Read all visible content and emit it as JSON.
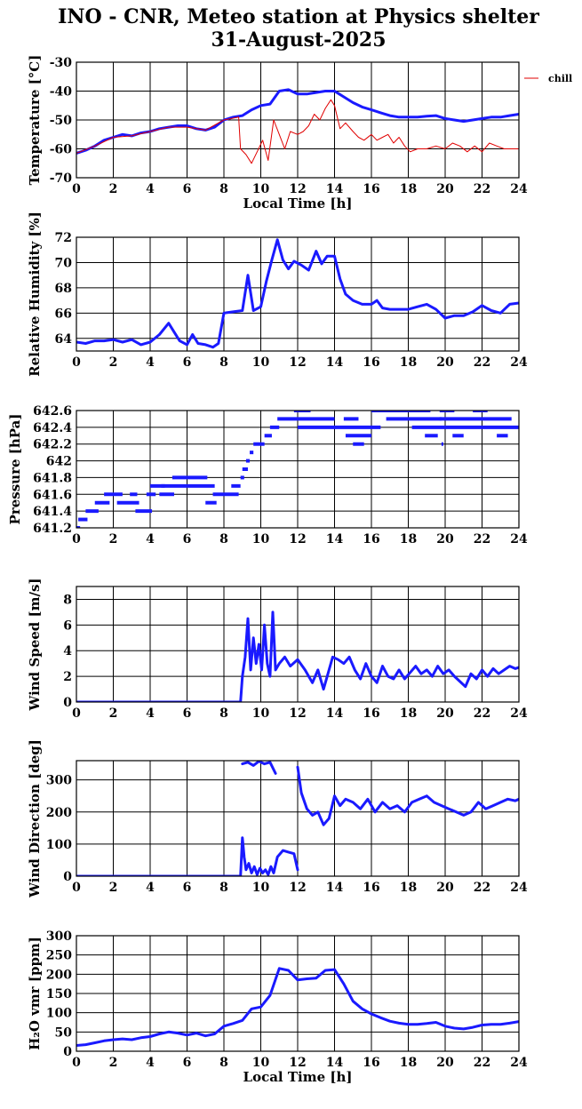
{
  "title": {
    "line1": "INO - CNR, Meteo station at Physics shelter",
    "line2": "31-August-2025"
  },
  "colors": {
    "blue": "#1a1aff",
    "red": "#e00000",
    "grid": "#000000"
  },
  "chart_data": [
    {
      "type": "line",
      "id": "temperature",
      "ylabel": "Temperature [°C]",
      "xlabel": "Local Time [h]",
      "xlim": [
        0,
        24
      ],
      "ylim": [
        -70,
        -30
      ],
      "xticks": [
        0,
        2,
        4,
        6,
        8,
        10,
        12,
        14,
        16,
        18,
        20,
        22,
        24
      ],
      "yticks": [
        -70,
        -60,
        -50,
        -40,
        -30
      ],
      "grid": true,
      "legend": {
        "position": "outside-right",
        "entries": [
          "chill"
        ]
      },
      "series": [
        {
          "color": "#1a1aff",
          "width": 3,
          "x": [
            0,
            0.5,
            1,
            1.5,
            2,
            2.5,
            3,
            3.5,
            4,
            4.5,
            5,
            5.5,
            6,
            6.5,
            7,
            7.5,
            8,
            8.5,
            9,
            9.5,
            10,
            10.5,
            11,
            11.5,
            12,
            12.5,
            13,
            13.5,
            14,
            14.5,
            15,
            15.5,
            16,
            16.5,
            17,
            17.5,
            18,
            18.5,
            19,
            19.5,
            20,
            20.5,
            21,
            21.5,
            22,
            22.5,
            23,
            23.5,
            24
          ],
          "y": [
            -61.5,
            -60.5,
            -59,
            -57,
            -56,
            -55,
            -55.5,
            -54.5,
            -54,
            -53,
            -52.5,
            -52,
            -52,
            -53,
            -53.5,
            -52.5,
            -50,
            -49,
            -48.5,
            -46.5,
            -45,
            -44.5,
            -40,
            -39.5,
            -41,
            -41,
            -40.5,
            -40,
            -40,
            -42,
            -44,
            -45.5,
            -46.5,
            -47.5,
            -48.5,
            -49,
            -49,
            -49,
            -48.7,
            -48.5,
            -49.5,
            -50,
            -50.5,
            -50,
            -49.5,
            -49,
            -49,
            -48.5,
            -48
          ]
        },
        {
          "name": "chill",
          "color": "#e00000",
          "width": 1,
          "x": [
            0,
            1,
            2,
            3,
            4,
            5,
            6,
            7,
            8,
            8.8,
            8.9,
            9.2,
            9.5,
            9.8,
            10.1,
            10.4,
            10.7,
            11,
            11.3,
            11.6,
            12,
            12.3,
            12.6,
            12.9,
            13.2,
            13.5,
            13.8,
            14,
            14.3,
            14.6,
            15,
            15.3,
            15.6,
            16,
            16.3,
            16.6,
            16.9,
            17.2,
            17.5,
            17.8,
            18.1,
            18.5,
            19,
            19.5,
            20,
            20.4,
            20.8,
            21.2,
            21.6,
            22,
            22.4,
            22.8,
            23.2,
            23.6,
            24
          ],
          "y": [
            -61.5,
            -59,
            -56,
            -55.5,
            -54,
            -52.5,
            -52.5,
            -53.5,
            -50,
            -49,
            -60,
            -62,
            -65,
            -61,
            -57,
            -64,
            -50,
            -55,
            -60,
            -54,
            -55,
            -54,
            -52,
            -48,
            -50,
            -46,
            -43,
            -45,
            -53,
            -51,
            -54,
            -56,
            -57,
            -55,
            -57,
            -56,
            -55,
            -58,
            -56,
            -59,
            -61,
            -60,
            -60,
            -59,
            -60,
            -58,
            -59,
            -61,
            -59,
            -61,
            -58,
            -59,
            -60,
            -60,
            -60
          ]
        }
      ]
    },
    {
      "type": "line",
      "id": "humidity",
      "ylabel": "Relative Humidity [%]",
      "xlim": [
        0,
        24
      ],
      "ylim": [
        63,
        72
      ],
      "xticks": [
        0,
        2,
        4,
        6,
        8,
        10,
        12,
        14,
        16,
        18,
        20,
        22,
        24
      ],
      "yticks": [
        64,
        66,
        68,
        70,
        72
      ],
      "grid": true,
      "series": [
        {
          "color": "#1a1aff",
          "width": 3,
          "x": [
            0,
            0.5,
            1,
            1.5,
            2,
            2.5,
            3,
            3.5,
            4,
            4.5,
            5,
            5.3,
            5.6,
            6,
            6.3,
            6.6,
            7,
            7.4,
            7.7,
            8,
            8.5,
            9,
            9.3,
            9.6,
            10,
            10.3,
            10.6,
            10.9,
            11.2,
            11.5,
            11.8,
            12.2,
            12.6,
            13,
            13.3,
            13.6,
            14,
            14.3,
            14.6,
            15,
            15.5,
            16,
            16.3,
            16.6,
            17,
            17.5,
            18,
            18.5,
            19,
            19.5,
            20,
            20.5,
            21,
            21.5,
            22,
            22.5,
            23,
            23.5,
            24
          ],
          "y": [
            63.7,
            63.6,
            63.8,
            63.8,
            63.9,
            63.7,
            63.9,
            63.5,
            63.7,
            64.3,
            65.2,
            64.5,
            63.8,
            63.5,
            64.3,
            63.6,
            63.5,
            63.3,
            63.6,
            66,
            66.1,
            66.2,
            69,
            66.2,
            66.5,
            68.5,
            70.2,
            71.8,
            70.2,
            69.5,
            70.1,
            69.8,
            69.4,
            70.9,
            69.9,
            70.5,
            70.5,
            68.7,
            67.5,
            67,
            66.7,
            66.7,
            67,
            66.4,
            66.3,
            66.3,
            66.3,
            66.5,
            66.7,
            66.3,
            65.6,
            65.8,
            65.8,
            66.1,
            66.6,
            66.2,
            66,
            66.7,
            66.8
          ]
        }
      ]
    },
    {
      "type": "scatter",
      "id": "pressure",
      "ylabel": "Pressure [hPa]",
      "xlim": [
        0,
        24
      ],
      "ylim": [
        641.2,
        642.6
      ],
      "xticks": [
        0,
        2,
        4,
        6,
        8,
        10,
        12,
        14,
        16,
        18,
        20,
        22,
        24
      ],
      "yticks": [
        641.2,
        641.4,
        641.6,
        641.8,
        642,
        642.2,
        642.4,
        642.6
      ],
      "yticklabels": [
        "641.2",
        "641.4",
        "641.6",
        "641.8",
        "642",
        "642.2",
        "642.4",
        "642.6"
      ],
      "grid": true,
      "series": [
        {
          "color": "#1a1aff",
          "segments": [
            [
              0.0,
              0.2,
              641.2
            ],
            [
              0.1,
              0.6,
              641.3
            ],
            [
              0.5,
              1.2,
              641.4
            ],
            [
              1.0,
              1.8,
              641.5
            ],
            [
              1.5,
              2.5,
              641.6
            ],
            [
              2.2,
              3.4,
              641.5
            ],
            [
              2.9,
              3.3,
              641.6
            ],
            [
              3.2,
              4.1,
              641.4
            ],
            [
              3.8,
              4.3,
              641.6
            ],
            [
              4.0,
              4.8,
              641.7
            ],
            [
              4.5,
              5.3,
              641.6
            ],
            [
              4.6,
              7.5,
              641.7
            ],
            [
              5.2,
              7.1,
              641.8
            ],
            [
              7.0,
              7.6,
              641.5
            ],
            [
              7.4,
              8.8,
              641.6
            ],
            [
              8.4,
              8.9,
              641.7
            ],
            [
              8.9,
              9.1,
              641.8
            ],
            [
              9.0,
              9.3,
              641.9
            ],
            [
              9.2,
              9.4,
              642.0
            ],
            [
              9.4,
              9.6,
              642.1
            ],
            [
              9.6,
              10.2,
              642.2
            ],
            [
              10.2,
              10.6,
              642.3
            ],
            [
              10.5,
              11.0,
              642.4
            ],
            [
              10.9,
              14.0,
              642.5
            ],
            [
              11.8,
              12.7,
              642.6
            ],
            [
              12.0,
              16.5,
              642.4
            ],
            [
              14.5,
              15.3,
              642.5
            ],
            [
              14.6,
              16.0,
              642.3
            ],
            [
              15.0,
              15.6,
              642.2
            ],
            [
              16.0,
              19.2,
              642.6
            ],
            [
              16.8,
              19.8,
              642.5
            ],
            [
              18.2,
              24.0,
              642.4
            ],
            [
              18.9,
              19.6,
              642.3
            ],
            [
              19.7,
              20.5,
              642.6
            ],
            [
              19.7,
              23.6,
              642.5
            ],
            [
              20.4,
              21.0,
              642.3
            ],
            [
              21.5,
              22.3,
              642.6
            ],
            [
              22.8,
              23.4,
              642.3
            ],
            [
              19.8,
              19.9,
              642.2
            ]
          ]
        }
      ]
    },
    {
      "type": "scatter",
      "id": "wind_speed",
      "ylabel": "Wind Speed [m/s]",
      "xlim": [
        0,
        24
      ],
      "ylim": [
        0,
        9
      ],
      "xticks": [
        0,
        2,
        4,
        6,
        8,
        10,
        12,
        14,
        16,
        18,
        20,
        22,
        24
      ],
      "yticks": [
        0,
        2,
        4,
        6,
        8
      ],
      "grid": true,
      "series": [
        {
          "color": "#1a1aff",
          "width": 3,
          "x": [
            0,
            8.9,
            9.0,
            9.15,
            9.3,
            9.45,
            9.6,
            9.75,
            9.9,
            10.05,
            10.2,
            10.35,
            10.5,
            10.65,
            10.8,
            11.0,
            11.3,
            11.6,
            12.0,
            12.4,
            12.8,
            13.1,
            13.4,
            13.7,
            13.9,
            14.2,
            14.5,
            14.8,
            15.1,
            15.4,
            15.7,
            16.0,
            16.3,
            16.6,
            16.9,
            17.2,
            17.5,
            17.8,
            18.1,
            18.4,
            18.7,
            19.0,
            19.3,
            19.6,
            19.9,
            20.2,
            20.5,
            20.8,
            21.1,
            21.4,
            21.7,
            22.0,
            22.3,
            22.6,
            22.9,
            23.2,
            23.5,
            23.8,
            24
          ],
          "y": [
            0,
            0,
            2.0,
            3.5,
            6.5,
            2.5,
            5.0,
            3.0,
            4.5,
            2.5,
            6.0,
            3.0,
            2.0,
            7.0,
            2.5,
            3.0,
            3.5,
            2.8,
            3.3,
            2.5,
            1.5,
            2.5,
            1.0,
            2.5,
            3.5,
            3.3,
            3.0,
            3.5,
            2.5,
            1.8,
            3.0,
            2.0,
            1.5,
            2.8,
            2.0,
            1.8,
            2.5,
            1.8,
            2.3,
            2.8,
            2.2,
            2.5,
            2.0,
            2.8,
            2.2,
            2.5,
            2.0,
            1.6,
            1.2,
            2.2,
            1.8,
            2.5,
            2.0,
            2.6,
            2.2,
            2.5,
            2.8,
            2.6,
            2.7
          ]
        }
      ]
    },
    {
      "type": "scatter",
      "id": "wind_direction",
      "ylabel": "Wind Direction [deg]",
      "xlim": [
        0,
        24
      ],
      "ylim": [
        0,
        360
      ],
      "xticks": [
        0,
        2,
        4,
        6,
        8,
        10,
        12,
        14,
        16,
        18,
        20,
        22,
        24
      ],
      "yticks": [
        0,
        100,
        200,
        300
      ],
      "grid": true,
      "series": [
        {
          "color": "#1a1aff",
          "width": 3,
          "x": [
            0,
            8.9,
            9.0,
            9.1,
            9.2,
            9.35,
            9.5,
            9.65,
            9.8,
            9.95,
            10.1,
            10.25,
            10.4,
            10.55,
            10.7,
            10.9,
            11.2,
            11.5,
            11.8,
            12.0
          ],
          "y": [
            0,
            0,
            120,
            60,
            20,
            40,
            10,
            30,
            5,
            25,
            10,
            20,
            5,
            30,
            10,
            60,
            80,
            75,
            70,
            20
          ]
        },
        {
          "color": "#1a1aff",
          "width": 3,
          "x": [
            9.0,
            9.3,
            9.6,
            9.9,
            10.2,
            10.5,
            10.8
          ],
          "y": [
            350,
            355,
            345,
            358,
            350,
            355,
            320
          ]
        },
        {
          "color": "#1a1aff",
          "width": 3,
          "x": [
            12.0,
            12.2,
            12.5,
            12.8,
            13.1,
            13.4,
            13.7,
            14.0,
            14.3,
            14.6,
            15.0,
            15.4,
            15.8,
            16.2,
            16.6,
            17.0,
            17.4,
            17.8,
            18.2,
            18.6,
            19.0,
            19.4,
            19.8,
            20.2,
            20.6,
            21.0,
            21.4,
            21.8,
            22.2,
            22.6,
            23.0,
            23.4,
            23.8,
            24.0
          ],
          "y": [
            340,
            260,
            210,
            190,
            200,
            160,
            180,
            250,
            220,
            240,
            230,
            210,
            240,
            200,
            230,
            210,
            220,
            200,
            230,
            240,
            250,
            230,
            220,
            210,
            200,
            190,
            200,
            230,
            210,
            220,
            230,
            240,
            235,
            240
          ]
        }
      ]
    },
    {
      "type": "line",
      "id": "h2o",
      "ylabel": "H₂O vmr [ppm]",
      "xlabel": "Local Time [h]",
      "xlim": [
        0,
        24
      ],
      "ylim": [
        0,
        300
      ],
      "xticks": [
        0,
        2,
        4,
        6,
        8,
        10,
        12,
        14,
        16,
        18,
        20,
        22,
        24
      ],
      "yticks": [
        0,
        50,
        100,
        150,
        200,
        250,
        300
      ],
      "grid": true,
      "series": [
        {
          "color": "#1a1aff",
          "width": 3,
          "x": [
            0,
            0.5,
            1,
            1.5,
            2,
            2.5,
            3,
            3.5,
            4,
            4.5,
            5,
            5.5,
            6,
            6.5,
            7,
            7.5,
            8,
            8.5,
            9,
            9.5,
            10,
            10.5,
            11,
            11.5,
            12,
            12.5,
            13,
            13.5,
            14,
            14.5,
            15,
            15.5,
            16,
            16.5,
            17,
            17.5,
            18,
            18.5,
            19,
            19.5,
            20,
            20.5,
            21,
            21.5,
            22,
            22.5,
            23,
            23.5,
            24
          ],
          "y": [
            15,
            17,
            22,
            27,
            30,
            32,
            30,
            35,
            38,
            45,
            50,
            47,
            42,
            47,
            40,
            45,
            65,
            72,
            80,
            110,
            115,
            145,
            215,
            210,
            185,
            188,
            190,
            210,
            212,
            175,
            130,
            110,
            97,
            87,
            78,
            73,
            70,
            70,
            72,
            75,
            65,
            60,
            58,
            62,
            68,
            70,
            70,
            73,
            77
          ]
        }
      ]
    }
  ]
}
